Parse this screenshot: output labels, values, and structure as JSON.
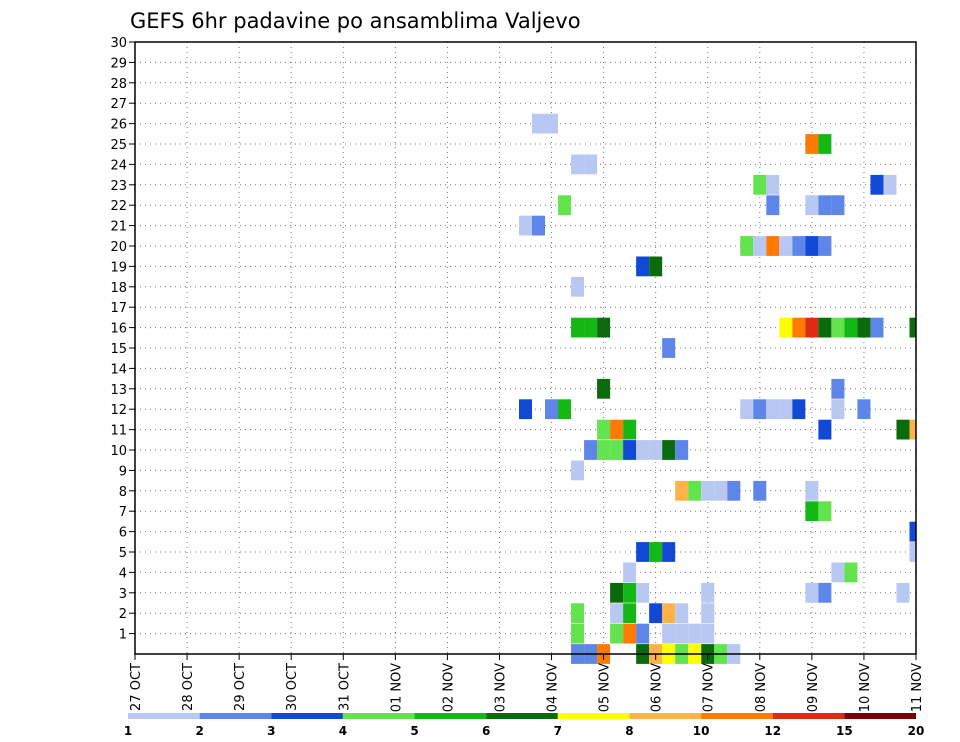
{
  "chart_data": {
    "type": "heatmap",
    "title": "GEFS 6hr padavine po ansamblima Valjevo",
    "x_tick_labels": [
      "27 OCT",
      "28 OCT",
      "29 OCT",
      "30 OCT",
      "31 OCT",
      "01 NOV",
      "02 NOV",
      "03 NOV",
      "04 NOV",
      "05 NOV",
      "06 NOV",
      "07 NOV",
      "08 NOV",
      "09 NOV",
      "10 NOV",
      "11 NOV"
    ],
    "y_tick_labels": [
      "1",
      "2",
      "3",
      "4",
      "5",
      "6",
      "7",
      "8",
      "9",
      "10",
      "11",
      "12",
      "13",
      "14",
      "15",
      "16",
      "17",
      "18",
      "19",
      "20",
      "21",
      "22",
      "23",
      "24",
      "25",
      "26",
      "27",
      "28",
      "29",
      "30"
    ],
    "x_unit": "6h steps from 27 OCT 00Z",
    "xlim": [
      0,
      60
    ],
    "ylim": [
      0,
      30
    ],
    "grid": true,
    "colorbar": {
      "colors": [
        "#b9c8f3",
        "#5e86e8",
        "#1148d6",
        "#63e34d",
        "#14b814",
        "#0b6a0b",
        "#ffff00",
        "#ffb347",
        "#ff7a00",
        "#e02a12",
        "#7c0000"
      ],
      "labels": [
        "1",
        "2",
        "3",
        "4",
        "5",
        "6",
        "7",
        "8",
        "10",
        "12",
        "15",
        "20"
      ]
    },
    "cells": [
      [
        34,
        0,
        2
      ],
      [
        35,
        0,
        2
      ],
      [
        36,
        0,
        9
      ],
      [
        39,
        0,
        6
      ],
      [
        40,
        0,
        8
      ],
      [
        41,
        0,
        7
      ],
      [
        42,
        0,
        4
      ],
      [
        43,
        0,
        7
      ],
      [
        44,
        0,
        6
      ],
      [
        45,
        0,
        4
      ],
      [
        46,
        0,
        1
      ],
      [
        34,
        1,
        4
      ],
      [
        37,
        1,
        4
      ],
      [
        38,
        1,
        9
      ],
      [
        39,
        1,
        2
      ],
      [
        41,
        1,
        1
      ],
      [
        42,
        1,
        1
      ],
      [
        43,
        1,
        1
      ],
      [
        44,
        1,
        1
      ],
      [
        34,
        2,
        4
      ],
      [
        37,
        2,
        1
      ],
      [
        38,
        2,
        5
      ],
      [
        40,
        2,
        3
      ],
      [
        41,
        2,
        8
      ],
      [
        42,
        2,
        1
      ],
      [
        44,
        2,
        1
      ],
      [
        37,
        3,
        6
      ],
      [
        38,
        3,
        5
      ],
      [
        39,
        3,
        1
      ],
      [
        44,
        3,
        1
      ],
      [
        52,
        3,
        1
      ],
      [
        53,
        3,
        2
      ],
      [
        59,
        3,
        1
      ],
      [
        38,
        4,
        1
      ],
      [
        54,
        4,
        1
      ],
      [
        55,
        4,
        4
      ],
      [
        39,
        5,
        3
      ],
      [
        40,
        5,
        5
      ],
      [
        41,
        5,
        3
      ],
      [
        60,
        5,
        1
      ],
      [
        60,
        6,
        3
      ],
      [
        52,
        7,
        5
      ],
      [
        53,
        7,
        4
      ],
      [
        42,
        8,
        8
      ],
      [
        43,
        8,
        4
      ],
      [
        44,
        8,
        1
      ],
      [
        45,
        8,
        1
      ],
      [
        46,
        8,
        2
      ],
      [
        48,
        8,
        2
      ],
      [
        52,
        8,
        1
      ],
      [
        34,
        9,
        1
      ],
      [
        35,
        10,
        2
      ],
      [
        36,
        10,
        4
      ],
      [
        37,
        10,
        4
      ],
      [
        38,
        10,
        3
      ],
      [
        39,
        10,
        1
      ],
      [
        40,
        10,
        1
      ],
      [
        41,
        10,
        6
      ],
      [
        42,
        10,
        2
      ],
      [
        36,
        11,
        4
      ],
      [
        37,
        11,
        9
      ],
      [
        38,
        11,
        5
      ],
      [
        53,
        11,
        3
      ],
      [
        59,
        11,
        6
      ],
      [
        60,
        11,
        8
      ],
      [
        30,
        12,
        3
      ],
      [
        32,
        12,
        2
      ],
      [
        33,
        12,
        5
      ],
      [
        47,
        12,
        1
      ],
      [
        48,
        12,
        2
      ],
      [
        49,
        12,
        1
      ],
      [
        50,
        12,
        1
      ],
      [
        51,
        12,
        3
      ],
      [
        54,
        12,
        1
      ],
      [
        56,
        12,
        2
      ],
      [
        36,
        13,
        6
      ],
      [
        54,
        13,
        2
      ],
      [
        41,
        15,
        2
      ],
      [
        34,
        16,
        5
      ],
      [
        35,
        16,
        5
      ],
      [
        36,
        16,
        6
      ],
      [
        50,
        16,
        7
      ],
      [
        51,
        16,
        9
      ],
      [
        52,
        16,
        10
      ],
      [
        53,
        16,
        6
      ],
      [
        54,
        16,
        4
      ],
      [
        55,
        16,
        5
      ],
      [
        56,
        16,
        6
      ],
      [
        57,
        16,
        2
      ],
      [
        60,
        16,
        6
      ],
      [
        34,
        18,
        1
      ],
      [
        39,
        19,
        3
      ],
      [
        40,
        19,
        6
      ],
      [
        47,
        20,
        4
      ],
      [
        48,
        20,
        1
      ],
      [
        49,
        20,
        9
      ],
      [
        50,
        20,
        1
      ],
      [
        51,
        20,
        2
      ],
      [
        52,
        20,
        3
      ],
      [
        53,
        20,
        2
      ],
      [
        30,
        21,
        1
      ],
      [
        31,
        21,
        2
      ],
      [
        33,
        22,
        4
      ],
      [
        49,
        22,
        2
      ],
      [
        52,
        22,
        1
      ],
      [
        53,
        22,
        2
      ],
      [
        54,
        22,
        2
      ],
      [
        48,
        23,
        4
      ],
      [
        49,
        23,
        1
      ],
      [
        57,
        23,
        3
      ],
      [
        58,
        23,
        1
      ],
      [
        34,
        24,
        1
      ],
      [
        35,
        24,
        1
      ],
      [
        52,
        25,
        9
      ],
      [
        53,
        25,
        5
      ],
      [
        31,
        26,
        1
      ],
      [
        32,
        26,
        1
      ]
    ]
  }
}
